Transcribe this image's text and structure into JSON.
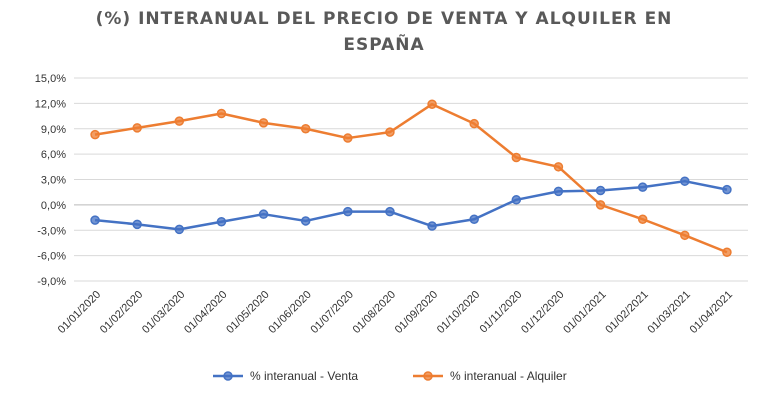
{
  "chart_data": {
    "type": "line",
    "title_line1": "(%) INTERANUAL DEL PRECIO DE VENTA Y ALQUILER EN",
    "title_line2": "ESPAÑA",
    "categories": [
      "01/01/2020",
      "01/02/2020",
      "01/03/2020",
      "01/04/2020",
      "01/05/2020",
      "01/06/2020",
      "01/07/2020",
      "01/08/2020",
      "01/09/2020",
      "01/10/2020",
      "01/11/2020",
      "01/12/2020",
      "01/01/2021",
      "01/02/2021",
      "01/03/2021",
      "01/04/2021"
    ],
    "yticks": [
      "15,0%",
      "12,0%",
      "9,0%",
      "6,0%",
      "3,0%",
      "0,0%",
      "-3,0%",
      "-6,0%",
      "-9,0%"
    ],
    "ylim": [
      -9,
      15
    ],
    "grid": true,
    "legend_position": "bottom",
    "series": [
      {
        "name": "% interanual - Venta",
        "color": "#4472C4",
        "values": [
          -1.8,
          -2.3,
          -2.9,
          -2.0,
          -1.1,
          -1.9,
          -0.8,
          -0.8,
          -2.5,
          -1.7,
          0.6,
          1.6,
          1.7,
          2.1,
          2.8,
          1.8
        ]
      },
      {
        "name": "% interanual - Alquiler",
        "color": "#ED7D31",
        "values": [
          8.3,
          9.1,
          9.9,
          10.8,
          9.7,
          9.0,
          7.9,
          8.6,
          11.9,
          9.6,
          5.6,
          4.5,
          0.0,
          -1.7,
          -3.6,
          -5.6
        ]
      }
    ]
  }
}
